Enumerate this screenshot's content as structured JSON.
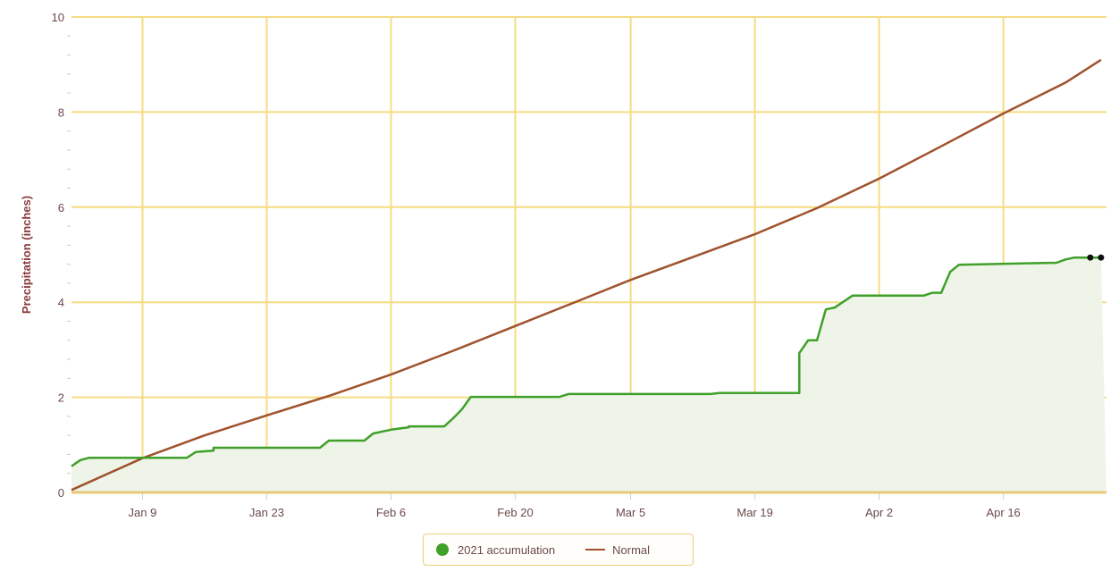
{
  "chart_data": {
    "type": "area",
    "title": "",
    "xlabel": "",
    "ylabel": "Precipitation (inches)",
    "ylim": [
      0,
      10
    ],
    "yticks": [
      0,
      2,
      4,
      6,
      8,
      10
    ],
    "x_tick_labels": [
      "Jan 9",
      "Jan 23",
      "Feb 6",
      "Feb 20",
      "Mar 5",
      "Mar 19",
      "Apr 2",
      "Apr 16"
    ],
    "x_range": [
      "Jan 1",
      "Apr 27"
    ],
    "grid": true,
    "legend_position": "bottom",
    "colors": {
      "accumulation": "#3fa02a",
      "accumulation_fill": "#eef5e8",
      "normal": "#a0522d",
      "grid": "#f5dc82",
      "axis_text": "#6b4a4a"
    },
    "series": [
      {
        "name": "2021 accumulation",
        "type": "area",
        "points": [
          [
            "Jan 1",
            0.55
          ],
          [
            "Jan 2",
            0.68
          ],
          [
            "Jan 3",
            0.73
          ],
          [
            "Jan 14",
            0.73
          ],
          [
            "Jan 15",
            0.85
          ],
          [
            "Jan 17",
            0.88
          ],
          [
            "Jan 17",
            0.94
          ],
          [
            "Jan 22",
            0.94
          ],
          [
            "Jan 29",
            0.94
          ],
          [
            "Jan 30",
            1.09
          ],
          [
            "Feb 3",
            1.09
          ],
          [
            "Feb 4",
            1.24
          ],
          [
            "Feb 6",
            1.32
          ],
          [
            "Feb 8",
            1.37
          ],
          [
            "Feb 8",
            1.39
          ],
          [
            "Feb 12",
            1.39
          ],
          [
            "Feb 13",
            1.56
          ],
          [
            "Feb 14",
            1.75
          ],
          [
            "Feb 15",
            2.01
          ],
          [
            "Feb 25",
            2.01
          ],
          [
            "Feb 26",
            2.07
          ],
          [
            "Mar 14",
            2.07
          ],
          [
            "Mar 15",
            2.09
          ],
          [
            "Mar 24",
            2.09
          ],
          [
            "Mar 24",
            2.93
          ],
          [
            "Mar 25",
            3.2
          ],
          [
            "Mar 26",
            3.2
          ],
          [
            "Mar 27",
            3.85
          ],
          [
            "Mar 28",
            3.89
          ],
          [
            "Mar 30",
            4.14
          ],
          [
            "Apr 7",
            4.14
          ],
          [
            "Apr 8",
            4.2
          ],
          [
            "Apr 9",
            4.2
          ],
          [
            "Apr 10",
            4.64
          ],
          [
            "Apr 11",
            4.79
          ],
          [
            "Apr 22",
            4.83
          ],
          [
            "Apr 23",
            4.9
          ],
          [
            "Apr 24",
            4.94
          ],
          [
            "Apr 27",
            4.94
          ]
        ]
      },
      {
        "name": "Normal",
        "type": "line",
        "points": [
          [
            "Jan 1",
            0.05
          ],
          [
            "Jan 9",
            0.72
          ],
          [
            "Jan 16",
            1.2
          ],
          [
            "Jan 23",
            1.62
          ],
          [
            "Jan 30",
            2.03
          ],
          [
            "Feb 6",
            2.48
          ],
          [
            "Feb 13",
            2.98
          ],
          [
            "Feb 20",
            3.5
          ],
          [
            "Feb 27",
            4.02
          ],
          [
            "Mar 5",
            4.47
          ],
          [
            "Mar 12",
            4.95
          ],
          [
            "Mar 19",
            5.43
          ],
          [
            "Mar 26",
            5.98
          ],
          [
            "Apr 2",
            6.6
          ],
          [
            "Apr 9",
            7.28
          ],
          [
            "Apr 16",
            7.97
          ],
          [
            "Apr 23",
            8.62
          ],
          [
            "Apr 27",
            9.1
          ]
        ]
      }
    ]
  },
  "axes": {
    "y_label": "Precipitation (inches)",
    "y_ticks": [
      "0",
      "2",
      "4",
      "6",
      "8",
      "10"
    ],
    "x_ticks": [
      "Jan 9",
      "Jan 23",
      "Feb 6",
      "Feb 20",
      "Mar 5",
      "Mar 19",
      "Apr 2",
      "Apr 16"
    ]
  },
  "legend": {
    "items": [
      {
        "label": "2021 accumulation",
        "symbol": "green-dot"
      },
      {
        "label": "Normal",
        "symbol": "brown-line"
      }
    ]
  }
}
